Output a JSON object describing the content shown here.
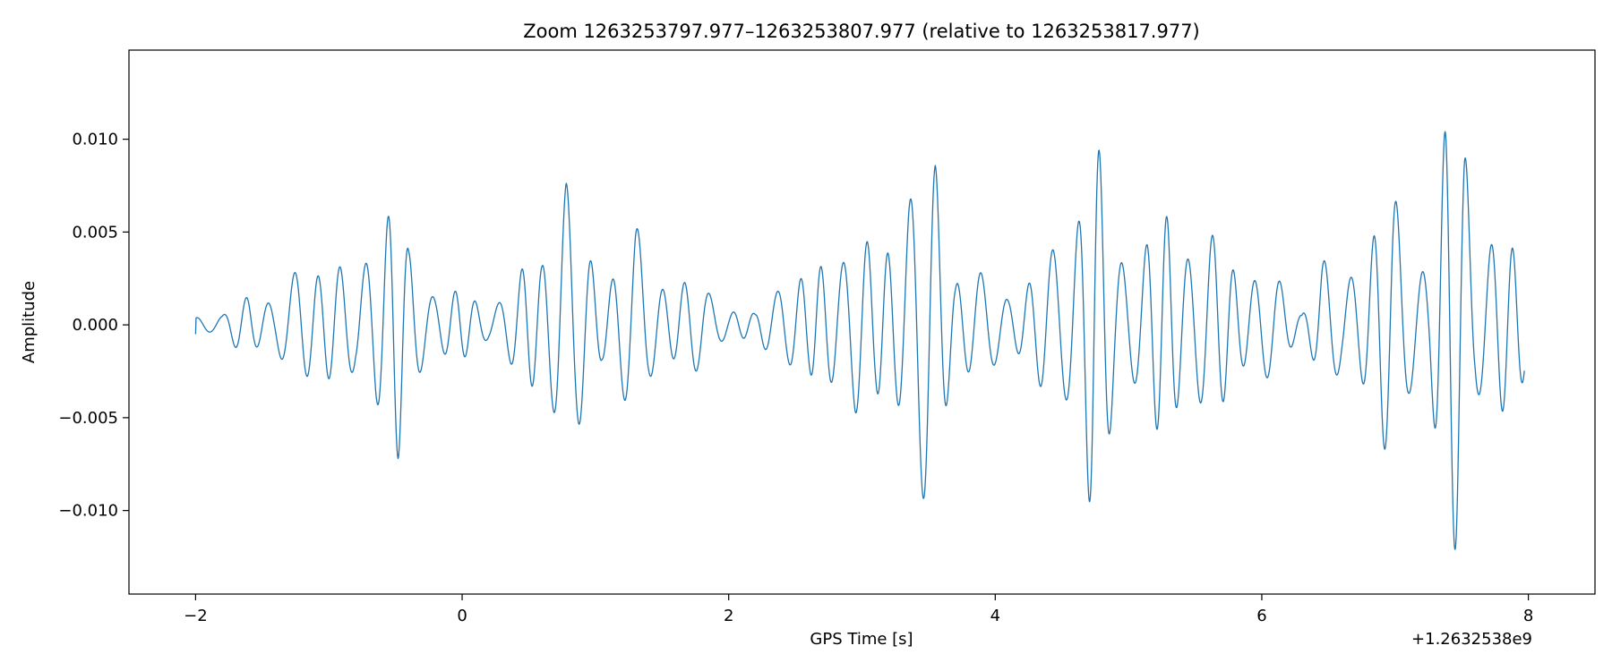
{
  "chart_data": {
    "type": "line",
    "title": "Zoom 1263253797.977–1263253807.977 (relative to 1263253817.977)",
    "xlabel": "GPS Time [s]",
    "ylabel": "Amplitude",
    "x_offset_label": "+1.2632538e9",
    "xlim": [
      -2.5,
      8.5
    ],
    "ylim": [
      -0.0145,
      0.0148
    ],
    "xticks": [
      -2,
      0,
      2,
      4,
      6,
      8
    ],
    "xtick_labels": [
      "−2",
      "0",
      "2",
      "4",
      "6",
      "8"
    ],
    "yticks": [
      -0.01,
      -0.005,
      0.0,
      0.005,
      0.01
    ],
    "ytick_labels": [
      "−0.010",
      "−0.005",
      "0.000",
      "0.005",
      "0.010"
    ],
    "grid": false,
    "colors": {
      "series": "#1f77b4"
    },
    "series": [
      {
        "name": "",
        "envelope_points": [
          [
            -2.0,
            0.0006
          ],
          [
            -1.8,
            0.0005
          ],
          [
            -1.6,
            0.002
          ],
          [
            -1.4,
            0.0015
          ],
          [
            -1.2,
            0.0035
          ],
          [
            -1.1,
            0.0042
          ],
          [
            -1.0,
            0.0038
          ],
          [
            -0.8,
            0.0025
          ],
          [
            -0.65,
            0.0065
          ],
          [
            -0.52,
            0.0077
          ],
          [
            -0.48,
            0.0075
          ],
          [
            -0.4,
            0.004
          ],
          [
            -0.2,
            0.0022
          ],
          [
            0.0,
            0.0018
          ],
          [
            0.2,
            0.0012
          ],
          [
            0.4,
            0.0025
          ],
          [
            0.6,
            0.0046
          ],
          [
            0.73,
            0.0083
          ],
          [
            0.78,
            0.0088
          ],
          [
            0.85,
            0.0058
          ],
          [
            1.05,
            0.0028
          ],
          [
            1.3,
            0.0055
          ],
          [
            1.4,
            0.0035
          ],
          [
            1.6,
            0.0025
          ],
          [
            1.8,
            0.0025
          ],
          [
            2.0,
            0.001
          ],
          [
            2.2,
            0.0006
          ],
          [
            2.4,
            0.0032
          ],
          [
            2.6,
            0.0025
          ],
          [
            2.8,
            0.0048
          ],
          [
            2.95,
            0.0055
          ],
          [
            3.1,
            0.0038
          ],
          [
            3.3,
            0.0072
          ],
          [
            3.35,
            0.0083
          ],
          [
            3.5,
            0.0098
          ],
          [
            3.55,
            0.0095
          ],
          [
            3.7,
            0.0035
          ],
          [
            3.9,
            0.0028
          ],
          [
            4.1,
            0.002
          ],
          [
            4.3,
            0.0028
          ],
          [
            4.5,
            0.0055
          ],
          [
            4.63,
            0.008
          ],
          [
            4.73,
            0.0114
          ],
          [
            4.8,
            0.0086
          ],
          [
            4.9,
            0.005
          ],
          [
            5.1,
            0.0045
          ],
          [
            5.3,
            0.0065
          ],
          [
            5.45,
            0.0055
          ],
          [
            5.65,
            0.0048
          ],
          [
            5.85,
            0.0035
          ],
          [
            6.1,
            0.0028
          ],
          [
            6.3,
            0.0008
          ],
          [
            6.45,
            0.0038
          ],
          [
            6.6,
            0.0025
          ],
          [
            6.8,
            0.0055
          ],
          [
            6.98,
            0.0075
          ],
          [
            7.1,
            0.0052
          ],
          [
            7.25,
            0.004
          ],
          [
            7.38,
            0.0108
          ],
          [
            7.47,
            0.0135
          ],
          [
            7.52,
            0.013
          ],
          [
            7.6,
            0.006
          ],
          [
            7.78,
            0.0048
          ],
          [
            7.97,
            0.004
          ]
        ],
        "carrier_cycles_per_second": 5.8,
        "note_polarity_skew": [
          -0.00095,
          0.0005
        ]
      }
    ]
  }
}
